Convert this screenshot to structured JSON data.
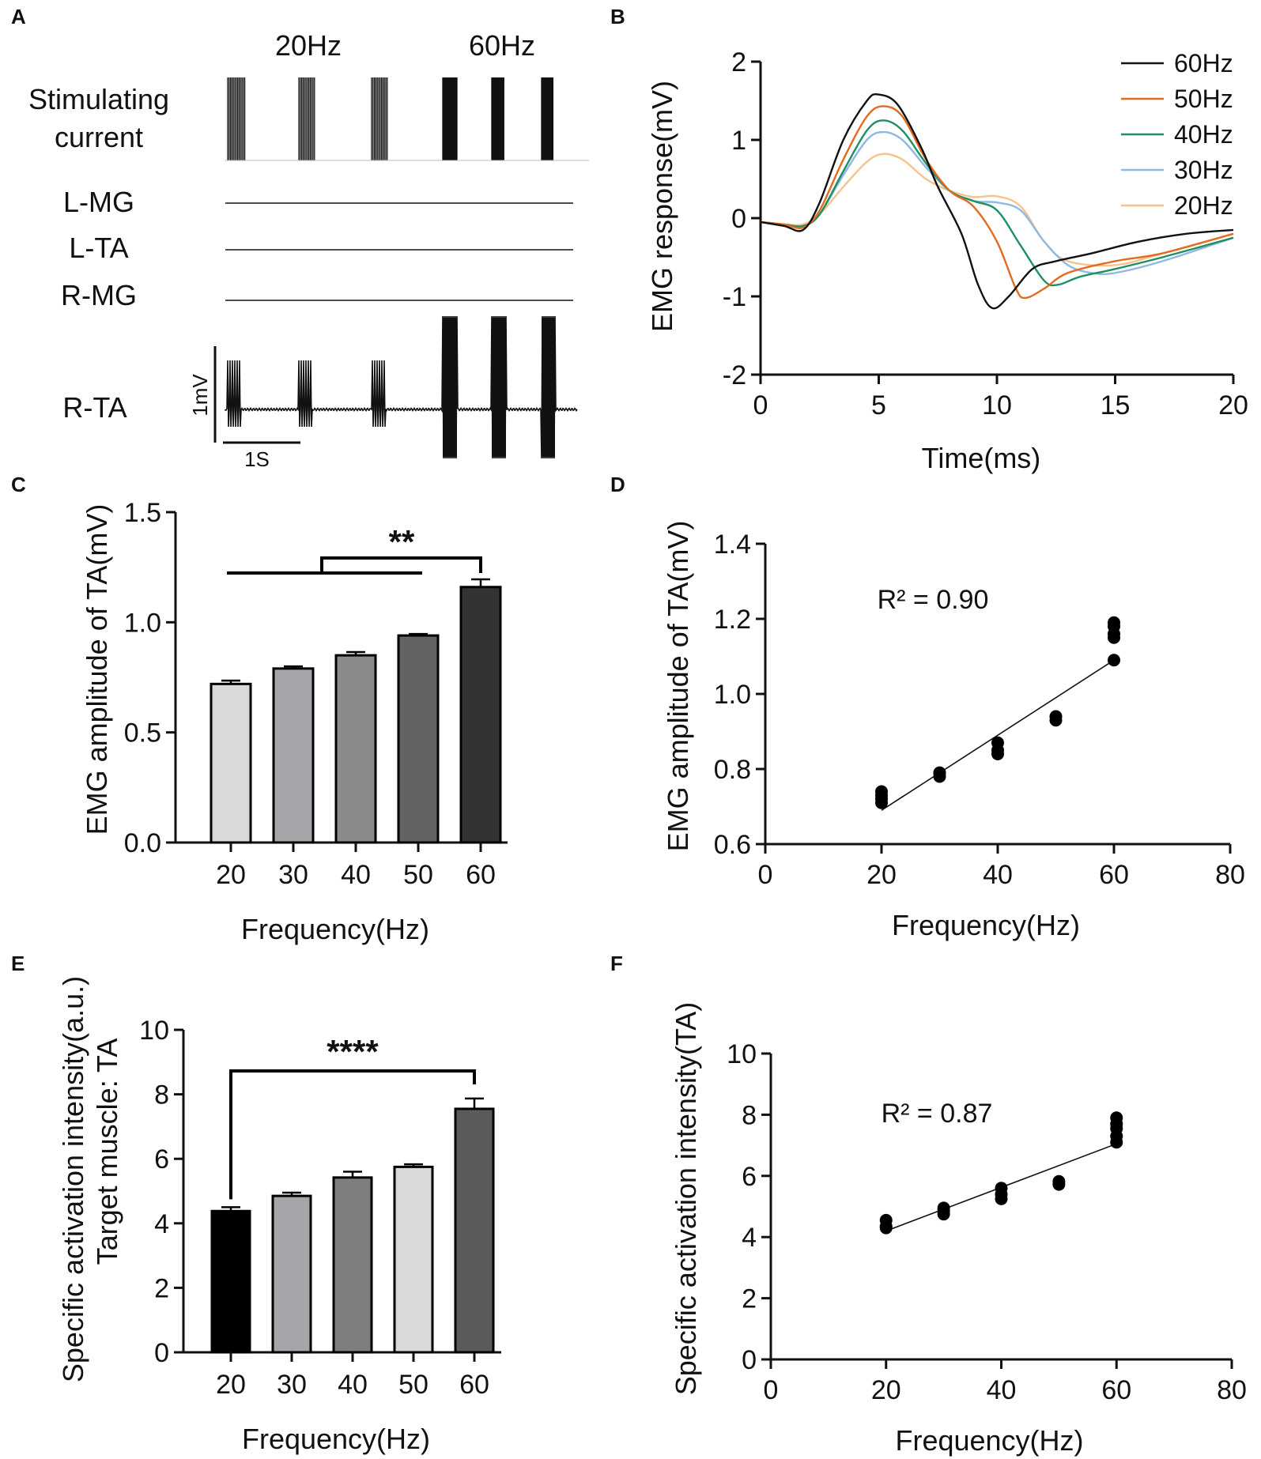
{
  "panels": {
    "A": {
      "label": "A",
      "freq_labels": [
        "20Hz",
        "60Hz"
      ],
      "stim_label_line1": "Stimulating",
      "stim_label_line2": "current",
      "muscles": [
        "L-MG",
        "L-TA",
        "R-MG",
        "R-TA"
      ],
      "scale_v": "1mV",
      "scale_t": "1S"
    },
    "B": {
      "label": "B"
    },
    "C": {
      "label": "C",
      "significance": "**"
    },
    "D": {
      "label": "D",
      "r2": "R² = 0.90"
    },
    "E": {
      "label": "E",
      "significance": "****",
      "ylabel_line2": "Target muscle: TA"
    },
    "F": {
      "label": "F",
      "r2": "R² = 0.87"
    }
  },
  "colors": {
    "60Hz": "#111111",
    "50Hz": "#e46a1f",
    "40Hz": "#1f8f63",
    "30Hz": "#8fb9e3",
    "20Hz": "#f5c28c"
  },
  "chart_data": [
    {
      "id": "B",
      "type": "line",
      "xlabel": "Time(ms)",
      "ylabel": "EMG response(mV)",
      "xlim": [
        0,
        20
      ],
      "ylim": [
        -2,
        2
      ],
      "xticks": [
        "0",
        "5",
        "10",
        "15",
        "20"
      ],
      "yticks": [
        "2",
        "1",
        "0",
        "-1",
        "-2"
      ],
      "legend_position": "top-right",
      "series": [
        {
          "name": "60Hz",
          "color": "#111111",
          "x": [
            0,
            1,
            1.8,
            2.5,
            3.5,
            4.5,
            5,
            5.8,
            6.8,
            7.5,
            8.5,
            9.2,
            9.8,
            10.5,
            11.5,
            12.5,
            14,
            16,
            18,
            20
          ],
          "y": [
            -0.05,
            -0.1,
            -0.15,
            0.2,
            1.0,
            1.5,
            1.58,
            1.45,
            0.9,
            0.4,
            -0.2,
            -0.85,
            -1.15,
            -1.0,
            -0.65,
            -0.55,
            -0.45,
            -0.3,
            -0.2,
            -0.15
          ]
        },
        {
          "name": "50Hz",
          "color": "#e46a1f",
          "x": [
            0,
            1,
            1.8,
            2.5,
            3.5,
            4.5,
            5.2,
            6,
            7,
            8,
            9,
            10,
            10.8,
            11.2,
            12,
            13,
            15,
            17,
            20
          ],
          "y": [
            -0.05,
            -0.08,
            -0.12,
            0.1,
            0.75,
            1.3,
            1.43,
            1.3,
            0.75,
            0.35,
            0.15,
            -0.3,
            -0.9,
            -1.02,
            -0.9,
            -0.7,
            -0.55,
            -0.45,
            -0.2
          ]
        },
        {
          "name": "40Hz",
          "color": "#1f8f63",
          "x": [
            0,
            1,
            1.8,
            2.5,
            3.5,
            4.5,
            5.2,
            6,
            7,
            8,
            9,
            10,
            11,
            12,
            12.6,
            13.5,
            15,
            17,
            20
          ],
          "y": [
            -0.05,
            -0.08,
            -0.1,
            0.05,
            0.6,
            1.12,
            1.25,
            1.12,
            0.7,
            0.35,
            0.22,
            0.1,
            -0.35,
            -0.8,
            -0.85,
            -0.75,
            -0.65,
            -0.5,
            -0.25
          ]
        },
        {
          "name": "30Hz",
          "color": "#8fb9e3",
          "x": [
            0,
            1,
            1.8,
            2.5,
            3.5,
            4.5,
            5.2,
            6,
            7,
            8,
            9,
            10,
            11,
            12,
            13,
            14,
            15,
            17,
            20
          ],
          "y": [
            -0.05,
            -0.08,
            -0.1,
            0.05,
            0.55,
            1.0,
            1.1,
            1.0,
            0.65,
            0.35,
            0.22,
            0.2,
            0.1,
            -0.3,
            -0.6,
            -0.7,
            -0.7,
            -0.55,
            -0.25
          ]
        },
        {
          "name": "20Hz",
          "color": "#f5c28c",
          "x": [
            0,
            1,
            1.8,
            2.5,
            3.5,
            4.5,
            5.2,
            6,
            7,
            8,
            9,
            10,
            11,
            12,
            13,
            15,
            17,
            20
          ],
          "y": [
            -0.05,
            -0.08,
            -0.08,
            0.05,
            0.4,
            0.72,
            0.82,
            0.75,
            0.5,
            0.35,
            0.27,
            0.28,
            0.15,
            -0.3,
            -0.55,
            -0.6,
            -0.45,
            -0.2
          ]
        }
      ]
    },
    {
      "id": "C",
      "type": "bar",
      "xlabel": "Frequency(Hz)",
      "ylabel": "EMG amplitude of TA(mV)",
      "ylim": [
        0,
        1.5
      ],
      "yticks": [
        "0.0",
        "0.5",
        "1.0",
        "1.5"
      ],
      "categories": [
        "20",
        "30",
        "40",
        "50",
        "60"
      ],
      "values": [
        0.72,
        0.79,
        0.85,
        0.94,
        1.16
      ],
      "errors": [
        0.015,
        0.01,
        0.015,
        0.007,
        0.035
      ],
      "bar_colors": [
        "#d9d9d9",
        "#a5a5aa",
        "#8a8a8a",
        "#636363",
        "#333333"
      ],
      "significance": "**"
    },
    {
      "id": "D",
      "type": "scatter",
      "xlabel": "Frequency(Hz)",
      "ylabel": "EMG amplitude of TA(mV)",
      "xlim": [
        0,
        80
      ],
      "ylim": [
        0.6,
        1.4
      ],
      "xticks": [
        "0",
        "20",
        "40",
        "60",
        "80"
      ],
      "yticks": [
        "0.6",
        "0.8",
        "1.0",
        "1.2",
        "1.4"
      ],
      "points": [
        [
          20,
          0.71
        ],
        [
          20,
          0.72
        ],
        [
          20,
          0.73
        ],
        [
          20,
          0.74
        ],
        [
          30,
          0.78
        ],
        [
          30,
          0.79
        ],
        [
          30,
          0.79
        ],
        [
          40,
          0.84
        ],
        [
          40,
          0.85
        ],
        [
          40,
          0.87
        ],
        [
          50,
          0.93
        ],
        [
          50,
          0.94
        ],
        [
          60,
          1.09
        ],
        [
          60,
          1.15
        ],
        [
          60,
          1.16
        ],
        [
          60,
          1.18
        ],
        [
          60,
          1.19
        ]
      ],
      "fit_line": [
        [
          20,
          0.69
        ],
        [
          60,
          1.09
        ]
      ],
      "annotation": "R² = 0.90"
    },
    {
      "id": "E",
      "type": "bar",
      "xlabel": "Frequency(Hz)",
      "ylabel": "Specific activation intensity(a.u.)",
      "ylim": [
        0,
        10
      ],
      "yticks": [
        "0",
        "2",
        "4",
        "6",
        "8",
        "10"
      ],
      "categories": [
        "20",
        "30",
        "40",
        "50",
        "60"
      ],
      "values": [
        4.38,
        4.85,
        5.42,
        5.75,
        7.55
      ],
      "errors": [
        0.12,
        0.1,
        0.18,
        0.08,
        0.32
      ],
      "bar_colors": [
        "#000000",
        "#a5a5aa",
        "#7e7e7e",
        "#d9d9d9",
        "#5a5a5a"
      ],
      "significance": "****"
    },
    {
      "id": "F",
      "type": "scatter",
      "xlabel": "Frequency(Hz)",
      "ylabel": "Specific activation intensity(TA)",
      "xlim": [
        0,
        80
      ],
      "ylim": [
        0,
        10
      ],
      "xticks": [
        "0",
        "20",
        "40",
        "60",
        "80"
      ],
      "yticks": [
        "0",
        "2",
        "4",
        "6",
        "8",
        "10"
      ],
      "points": [
        [
          20,
          4.3
        ],
        [
          20,
          4.35
        ],
        [
          20,
          4.55
        ],
        [
          30,
          4.75
        ],
        [
          30,
          4.85
        ],
        [
          30,
          4.95
        ],
        [
          40,
          5.25
        ],
        [
          40,
          5.4
        ],
        [
          40,
          5.6
        ],
        [
          50,
          5.72
        ],
        [
          50,
          5.82
        ],
        [
          60,
          7.1
        ],
        [
          60,
          7.3
        ],
        [
          60,
          7.55
        ],
        [
          60,
          7.7
        ],
        [
          60,
          7.9
        ]
      ],
      "fit_line": [
        [
          20,
          4.2
        ],
        [
          60,
          7.05
        ]
      ],
      "annotation": "R² = 0.87"
    }
  ]
}
